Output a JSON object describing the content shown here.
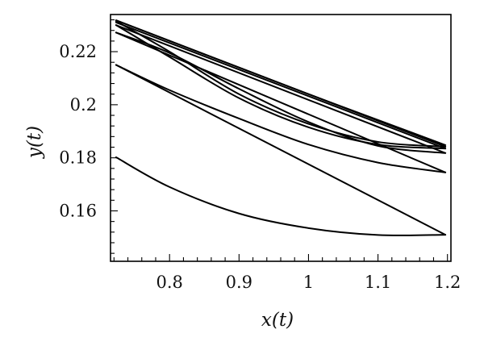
{
  "chart_data": {
    "type": "line",
    "title": "",
    "xlabel": "x(t)",
    "ylabel": "y(t)",
    "xlim": [
      0.715,
      1.205
    ],
    "ylim": [
      0.141,
      0.234
    ],
    "xticks": [
      0.8,
      0.9,
      1,
      1.1,
      1.2
    ],
    "xtick_labels": [
      "0.8",
      "0.9",
      "1",
      "1.1",
      "1.2"
    ],
    "yticks": [
      0.16,
      0.18,
      0.2,
      0.22
    ],
    "ytick_labels": [
      "0.16",
      "0.18",
      "0.2",
      "0.22"
    ],
    "grid": false,
    "legend": "none",
    "series": [
      {
        "points": [
          [
            0.723,
            0.1802
          ],
          [
            0.8,
            0.169
          ],
          [
            0.9,
            0.159
          ],
          [
            1.0,
            0.1535
          ],
          [
            1.1,
            0.1509
          ],
          [
            1.197,
            0.151
          ]
        ]
      },
      {
        "points": [
          [
            0.723,
            0.215
          ],
          [
            1.197,
            0.151
          ]
        ]
      },
      {
        "points": [
          [
            0.723,
            0.215
          ],
          [
            0.8,
            0.2055
          ],
          [
            0.9,
            0.1948
          ],
          [
            1.0,
            0.185
          ],
          [
            1.1,
            0.1782
          ],
          [
            1.197,
            0.1745
          ]
        ]
      },
      {
        "points": [
          [
            0.723,
            0.2272
          ],
          [
            1.197,
            0.1745
          ]
        ]
      },
      {
        "points": [
          [
            0.723,
            0.2272
          ],
          [
            0.8,
            0.2195
          ],
          [
            0.9,
            0.206
          ],
          [
            1.0,
            0.1935
          ],
          [
            1.1,
            0.1845
          ],
          [
            1.197,
            0.1818
          ]
        ]
      },
      {
        "points": [
          [
            0.723,
            0.23
          ],
          [
            1.197,
            0.1818
          ]
        ]
      },
      {
        "points": [
          [
            0.723,
            0.23
          ],
          [
            0.8,
            0.218
          ],
          [
            0.9,
            0.2025
          ],
          [
            1.0,
            0.1915
          ],
          [
            1.1,
            0.185
          ],
          [
            1.197,
            0.1835
          ]
        ]
      },
      {
        "points": [
          [
            0.723,
            0.2315
          ],
          [
            0.8,
            0.22
          ],
          [
            0.9,
            0.204
          ],
          [
            1.0,
            0.1928
          ],
          [
            1.1,
            0.186
          ],
          [
            1.197,
            0.1842
          ]
        ]
      },
      {
        "points": [
          [
            0.723,
            0.2318
          ],
          [
            1.197,
            0.1842
          ]
        ]
      },
      {
        "points": [
          [
            0.723,
            0.231
          ],
          [
            1.197,
            0.1835
          ]
        ]
      },
      {
        "points": [
          [
            0.723,
            0.2318
          ],
          [
            1.0,
            0.204
          ],
          [
            1.197,
            0.1848
          ]
        ]
      }
    ]
  }
}
